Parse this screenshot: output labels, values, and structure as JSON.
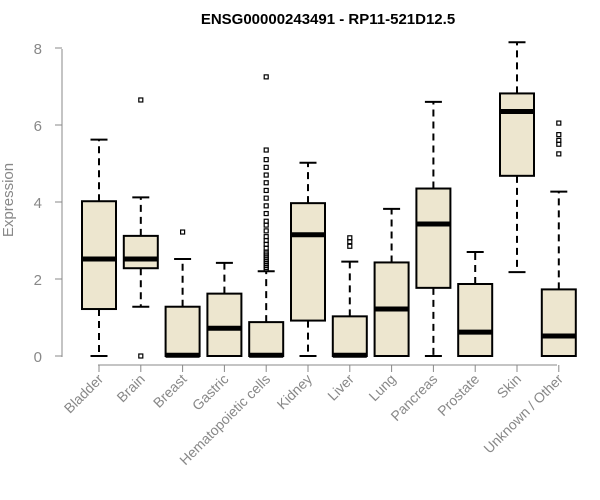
{
  "chart_data": {
    "type": "box",
    "title": "ENSG00000243491 - RP11-521D12.5",
    "ylabel": "Expression",
    "xlabel": "",
    "ylim": [
      0,
      8
    ],
    "yticks": [
      0,
      2,
      4,
      6,
      8
    ],
    "grid": false,
    "box_fill": "#ede6cf",
    "categories": [
      "Bladder",
      "Brain",
      "Breast",
      "Gastric",
      "Hematopoietic cells",
      "Kidney",
      "Liver",
      "Lung",
      "Pancreas",
      "Prostate",
      "Skin",
      "Unknown / Other"
    ],
    "boxes": [
      {
        "min": 0.0,
        "q1": 1.22,
        "median": 2.52,
        "q3": 4.02,
        "max": 5.62,
        "outliers": []
      },
      {
        "min": 1.28,
        "q1": 2.28,
        "median": 2.52,
        "q3": 3.12,
        "max": 4.12,
        "outliers": [
          6.65,
          0.0
        ]
      },
      {
        "min": 0.0,
        "q1": 0.0,
        "median": 0.02,
        "q3": 1.28,
        "max": 2.52,
        "outliers": [
          3.22
        ]
      },
      {
        "min": 0.0,
        "q1": 0.0,
        "median": 0.72,
        "q3": 1.62,
        "max": 2.42,
        "outliers": []
      },
      {
        "min": 0.0,
        "q1": 0.0,
        "median": 0.02,
        "q3": 0.88,
        "max": 2.2,
        "outliers": [
          2.25,
          2.3,
          2.35,
          2.4,
          2.45,
          2.5,
          2.55,
          2.6,
          2.65,
          2.7,
          2.8,
          2.9,
          3.0,
          3.1,
          3.25,
          3.4,
          3.5,
          3.7,
          3.9,
          4.1,
          4.3,
          4.5,
          4.7,
          4.9,
          5.1,
          5.35,
          7.25
        ]
      },
      {
        "min": 0.0,
        "q1": 0.92,
        "median": 3.15,
        "q3": 3.97,
        "max": 5.02,
        "outliers": []
      },
      {
        "min": 0.0,
        "q1": 0.0,
        "median": 0.02,
        "q3": 1.03,
        "max": 2.45,
        "outliers": [
          2.85,
          2.97,
          3.07
        ]
      },
      {
        "min": 0.0,
        "q1": 0.0,
        "median": 1.22,
        "q3": 2.43,
        "max": 3.82,
        "outliers": []
      },
      {
        "min": 0.0,
        "q1": 1.77,
        "median": 3.43,
        "q3": 4.35,
        "max": 6.6,
        "outliers": []
      },
      {
        "min": 0.0,
        "q1": 0.0,
        "median": 0.62,
        "q3": 1.87,
        "max": 2.7,
        "outliers": []
      },
      {
        "min": 2.18,
        "q1": 4.68,
        "median": 6.35,
        "q3": 6.82,
        "max": 8.15,
        "outliers": []
      },
      {
        "min": 0.0,
        "q1": 0.0,
        "median": 0.52,
        "q3": 1.73,
        "max": 4.27,
        "outliers": [
          5.25,
          5.5,
          5.6,
          5.75,
          6.05
        ]
      }
    ]
  }
}
